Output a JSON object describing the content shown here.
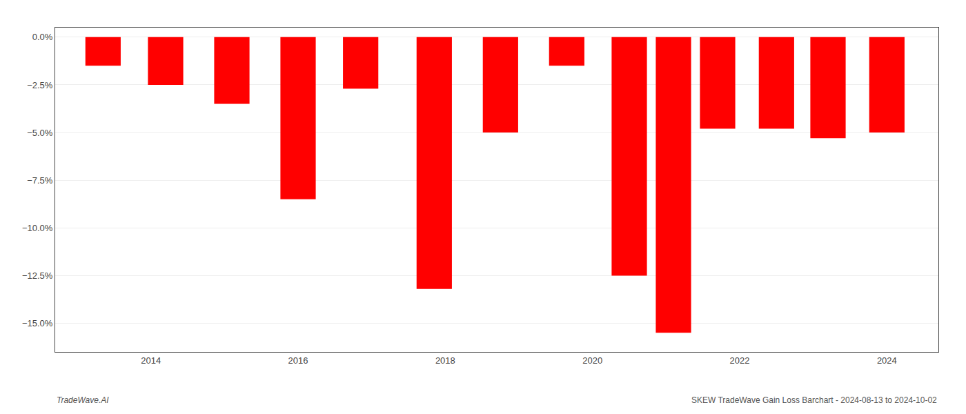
{
  "chart_data": {
    "type": "bar",
    "x": [
      2013.35,
      2014.2,
      2015.1,
      2016.0,
      2016.85,
      2017.85,
      2018.75,
      2019.65,
      2020.5,
      2021.1,
      2021.7,
      2022.5,
      2023.2,
      2024.0
    ],
    "values": [
      -1.5,
      -2.5,
      -3.5,
      -8.5,
      -2.7,
      -13.2,
      -5.0,
      -1.5,
      -12.5,
      -15.5,
      -4.8,
      -4.8,
      -5.3,
      -5.0
    ],
    "color": "#ff0000",
    "xlim": [
      2012.7,
      2024.7
    ],
    "xticks": [
      2014,
      2016,
      2018,
      2020,
      2022,
      2024
    ],
    "ylim": [
      -16.5,
      0.5
    ],
    "yticks": [
      {
        "value": 0.0,
        "label": "0.0%"
      },
      {
        "value": -2.5,
        "label": "−2.5%"
      },
      {
        "value": -5.0,
        "label": "−5.0%"
      },
      {
        "value": -7.5,
        "label": "−7.5%"
      },
      {
        "value": -10.0,
        "label": "−10.0%"
      },
      {
        "value": -12.5,
        "label": "−12.5%"
      },
      {
        "value": -15.0,
        "label": "−15.0%"
      }
    ],
    "grid": true,
    "annotations": [
      "TradeWave.AI",
      "SKEW TradeWave Gain Loss Barchart - 2024-08-13 to 2024-10-02"
    ]
  }
}
